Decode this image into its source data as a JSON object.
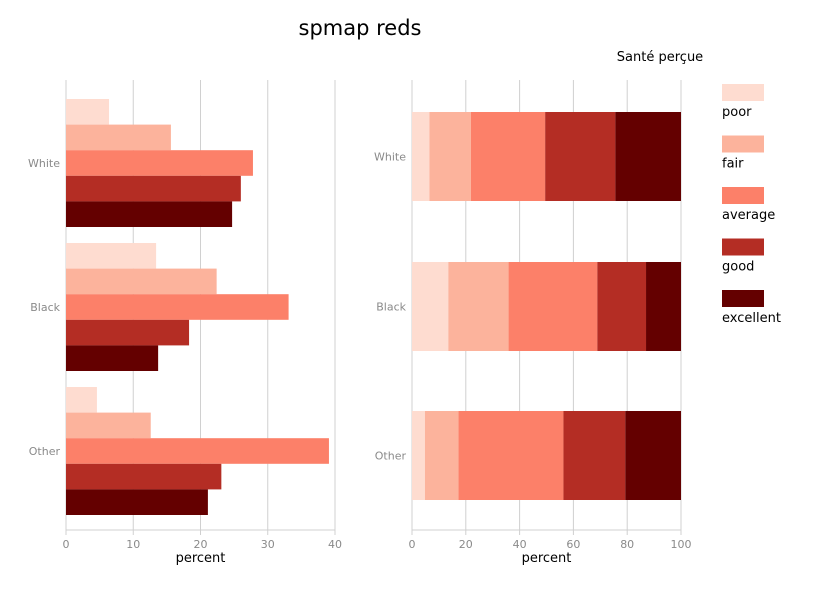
{
  "colors": {
    "poor": "#fedcd0",
    "fair": "#fcb39c",
    "average": "#fc8069",
    "good": "#b42d24",
    "excellent": "#640000",
    "grid": "#d0d0d0"
  },
  "chart_data": {
    "type": "bar",
    "title": "spmap reds",
    "legend_title": "Santé perçue",
    "legend_placement": "right",
    "categories": [
      "White",
      "Black",
      "Other"
    ],
    "series_names": [
      "poor",
      "fair",
      "average",
      "good",
      "excellent"
    ],
    "panels": [
      {
        "type": "bar",
        "orientation": "horizontal",
        "stacked": false,
        "xlabel": "percent",
        "xlim": [
          0,
          40
        ],
        "xticks": [
          "0",
          "10",
          "20",
          "30",
          "40"
        ],
        "grid": true,
        "series": [
          {
            "name": "poor",
            "values": [
              6.4,
              13.4,
              4.6
            ]
          },
          {
            "name": "fair",
            "values": [
              15.6,
              22.4,
              12.6
            ]
          },
          {
            "name": "average",
            "values": [
              27.8,
              33.1,
              39.1
            ]
          },
          {
            "name": "good",
            "values": [
              26.0,
              18.3,
              23.1
            ]
          },
          {
            "name": "excellent",
            "values": [
              24.7,
              13.7,
              21.1
            ]
          }
        ]
      },
      {
        "type": "bar",
        "orientation": "horizontal",
        "stacked": true,
        "xlabel": "percent",
        "xlim": [
          0,
          100
        ],
        "xticks": [
          "0",
          "20",
          "40",
          "60",
          "80",
          "100"
        ],
        "grid": true,
        "series": [
          {
            "name": "poor",
            "values": [
              6.5,
              13.5,
              4.8
            ]
          },
          {
            "name": "fair",
            "values": [
              15.4,
              22.4,
              12.5
            ]
          },
          {
            "name": "average",
            "values": [
              27.6,
              33.0,
              39.0
            ]
          },
          {
            "name": "good",
            "values": [
              26.1,
              18.1,
              23.0
            ]
          },
          {
            "name": "excellent",
            "values": [
              24.4,
              13.0,
              20.7
            ]
          }
        ]
      }
    ]
  }
}
